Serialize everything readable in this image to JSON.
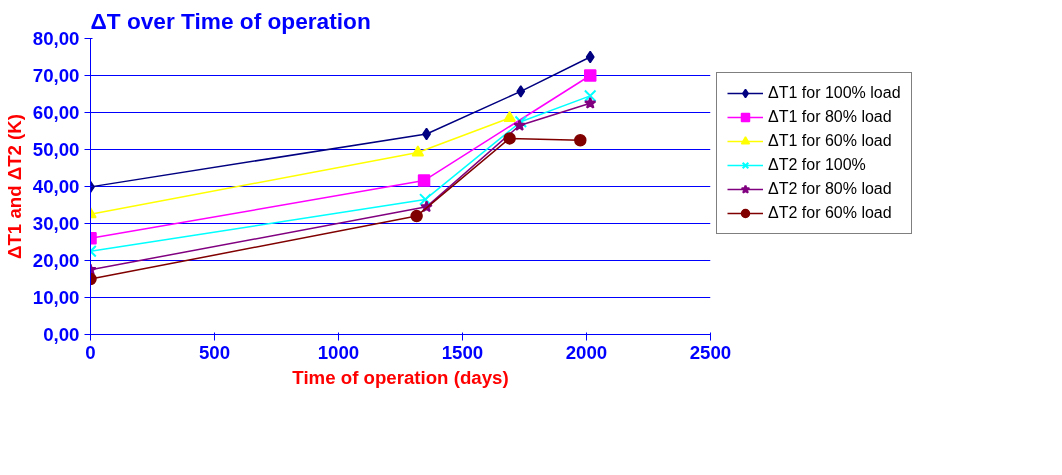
{
  "chart_data": {
    "type": "line",
    "title": "ΔT over Time of operation",
    "xlabel": "Time of operation (days)",
    "ylabel": "ΔT1 and ΔT2 (K)",
    "xlim": [
      0,
      2500
    ],
    "xticks": [
      0,
      500,
      1000,
      1500,
      2000,
      2500
    ],
    "ylim": [
      0,
      80
    ],
    "yticks": [
      {
        "value": 0,
        "label": "0,00"
      },
      {
        "value": 10,
        "label": "10,00"
      },
      {
        "value": 20,
        "label": "20,00"
      },
      {
        "value": 30,
        "label": "30,00"
      },
      {
        "value": 40,
        "label": "40,00"
      },
      {
        "value": 50,
        "label": "50,00"
      },
      {
        "value": 60,
        "label": "60,00"
      },
      {
        "value": 70,
        "label": "70,00"
      },
      {
        "value": 80,
        "label": "80,00"
      }
    ],
    "grid": "y",
    "legend": "right",
    "series": [
      {
        "name": "ΔT1 for 100% load",
        "color": "#000080",
        "marker": "diamond",
        "x": [
          0,
          1355,
          1735,
          2015
        ],
        "values": [
          39.9,
          54.2,
          65.7,
          75.0
        ]
      },
      {
        "name": "ΔT1 for 80% load",
        "color": "#ff00ff",
        "marker": "square",
        "x": [
          0,
          1345,
          2015
        ],
        "values": [
          26.0,
          41.6,
          70.0
        ]
      },
      {
        "name": "ΔT1 for 60% load",
        "color": "#ffff00",
        "marker": "triangle",
        "x": [
          0,
          1320,
          1690
        ],
        "values": [
          32.5,
          49.2,
          58.5
        ]
      },
      {
        "name": "ΔT2 for 100%",
        "color": "#00ffff",
        "marker": "cross",
        "x": [
          0,
          1350,
          1735,
          2015
        ],
        "values": [
          22.5,
          36.5,
          57.5,
          64.5
        ]
      },
      {
        "name": "ΔT2 for 80% load",
        "color": "#800080",
        "marker": "star",
        "x": [
          0,
          1355,
          1730,
          2015
        ],
        "values": [
          17.5,
          34.5,
          56.5,
          62.5
        ]
      },
      {
        "name": "ΔT2 for 60% load",
        "color": "#800000",
        "marker": "circle",
        "x": [
          0,
          1315,
          1690,
          1975
        ],
        "values": [
          15.0,
          32.0,
          53.0,
          52.5
        ]
      }
    ]
  }
}
